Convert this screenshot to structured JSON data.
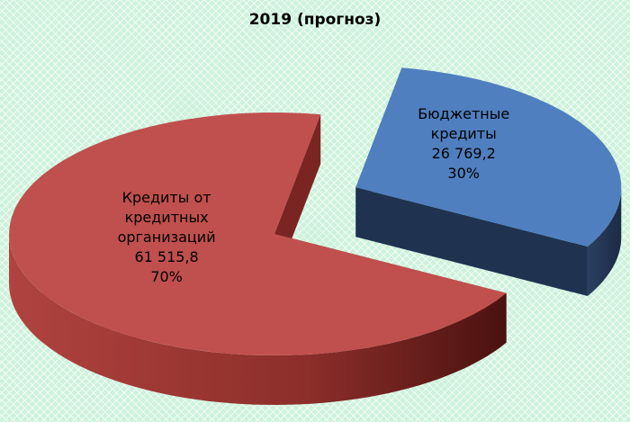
{
  "chart_data": {
    "type": "pie",
    "title": "2019 (прогноз)",
    "categories": [
      "Бюджетные кредиты",
      "Кредиты от кредитных организаций"
    ],
    "values": [
      26769.2,
      61515.8
    ],
    "value_labels": [
      "26 769,2",
      "61 515,8"
    ],
    "percents": [
      30,
      70
    ],
    "percent_labels": [
      "30%",
      "70%"
    ],
    "colors": [
      "#4f7fbf",
      "#c0504d"
    ]
  }
}
